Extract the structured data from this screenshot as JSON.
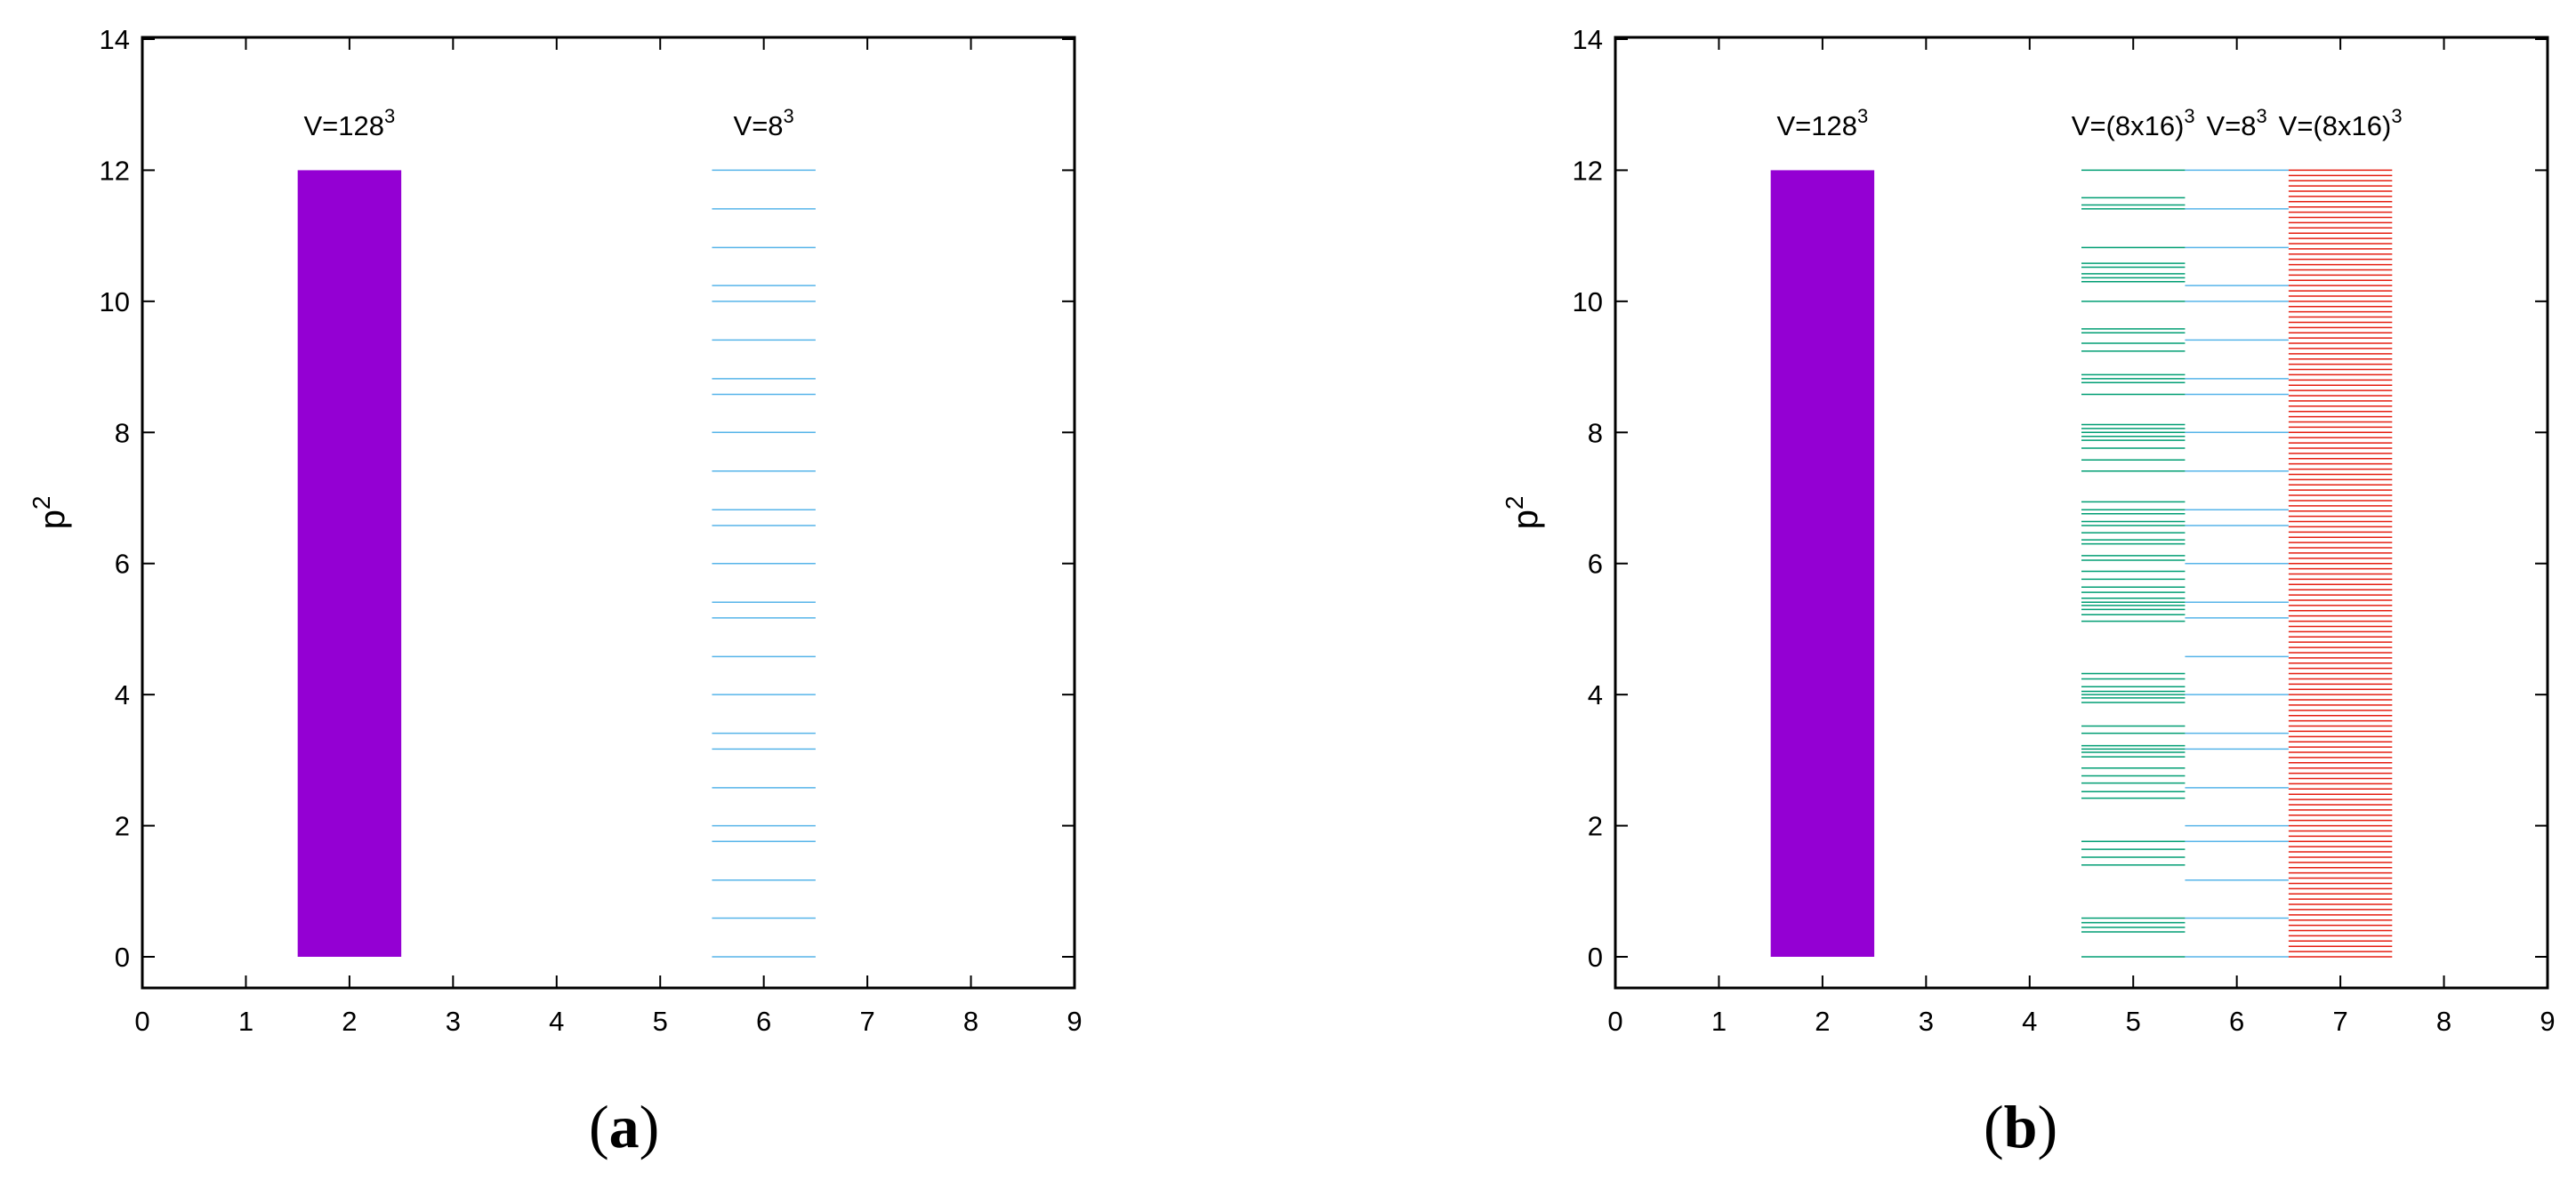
{
  "panels": [
    {
      "label": "(a)",
      "label_bold": "a",
      "chart_data": {
        "type": "bar",
        "title": "",
        "xlabel": "",
        "ylabel": "p",
        "ylabel_superscript": "2",
        "xlim": [
          0,
          9
        ],
        "ylim": [
          0,
          14
        ],
        "x_ticks": [
          "0",
          "1",
          "2",
          "3",
          "4",
          "5",
          "6",
          "7",
          "8",
          "9"
        ],
        "y_ticks": [
          "0",
          "2",
          "4",
          "6",
          "8",
          "10",
          "12",
          "14"
        ],
        "grid": false,
        "annotations": [
          {
            "x": 2.0,
            "y": 12.7,
            "base": "V=128",
            "sup": "3"
          },
          {
            "x": 6.0,
            "y": 12.7,
            "base": "V=8",
            "sup": "3"
          }
        ],
        "series": [
          {
            "kind": "band",
            "x": [
              1.5,
              2.5
            ],
            "y": [
              0,
              12
            ],
            "color": "#9400d3"
          },
          {
            "kind": "levels",
            "x": [
              5.5,
              6.5
            ],
            "color": "#56b4e9",
            "levels": [
              0,
              0.59,
              1.17,
              1.76,
              2.0,
              2.58,
              3.17,
              3.41,
              4.0,
              4.58,
              5.17,
              5.41,
              6.0,
              6.58,
              6.82,
              7.41,
              8.0,
              8.58,
              8.82,
              9.41,
              10.0,
              10.24,
              10.82,
              11.41,
              12.0
            ]
          }
        ]
      }
    },
    {
      "label": "(b)",
      "label_bold": "b",
      "chart_data": {
        "type": "bar",
        "title": "",
        "xlabel": "",
        "ylabel": "p",
        "ylabel_superscript": "2",
        "xlim": [
          0,
          9
        ],
        "ylim": [
          0,
          14
        ],
        "x_ticks": [
          "0",
          "1",
          "2",
          "3",
          "4",
          "5",
          "6",
          "7",
          "8",
          "9"
        ],
        "y_ticks": [
          "0",
          "2",
          "4",
          "6",
          "8",
          "10",
          "12",
          "14"
        ],
        "grid": false,
        "annotations": [
          {
            "x": 2.0,
            "y": 12.7,
            "base": "V=128",
            "sup": "3"
          },
          {
            "x": 5.0,
            "y": 12.7,
            "base": "V=(8x16)",
            "sup": "3"
          },
          {
            "x": 6.0,
            "y": 12.7,
            "base": "V=8",
            "sup": "3"
          },
          {
            "x": 7.0,
            "y": 12.7,
            "base": "V=(8x16)",
            "sup": "3"
          }
        ],
        "series": [
          {
            "kind": "band",
            "x": [
              1.5,
              2.5
            ],
            "y": [
              0,
              12
            ],
            "color": "#9400d3"
          },
          {
            "kind": "levels",
            "x": [
              4.5,
              5.5
            ],
            "color": "#009e73",
            "levels": [
              0,
              0.38,
              0.45,
              0.52,
              0.59,
              1.4,
              1.52,
              1.64,
              1.76,
              2.42,
              2.52,
              2.65,
              2.76,
              2.88,
              3.05,
              3.12,
              3.17,
              3.22,
              3.41,
              3.52,
              3.88,
              3.95,
              4.0,
              4.05,
              4.12,
              4.24,
              4.32,
              5.12,
              5.22,
              5.3,
              5.36,
              5.41,
              5.47,
              5.56,
              5.64,
              5.76,
              5.88,
              6.05,
              6.12,
              6.3,
              6.36,
              6.47,
              6.58,
              6.64,
              6.76,
              6.82,
              6.94,
              7.41,
              7.58,
              7.76,
              7.88,
              7.94,
              8.0,
              8.06,
              8.12,
              8.58,
              8.76,
              8.82,
              8.88,
              9.24,
              9.36,
              9.52,
              9.58,
              10.0,
              10.3,
              10.36,
              10.42,
              10.52,
              10.58,
              10.82,
              11.41,
              11.47,
              11.58,
              12.0
            ]
          },
          {
            "kind": "levels",
            "x": [
              5.5,
              6.5
            ],
            "color": "#56b4e9",
            "levels": [
              0,
              0.59,
              1.17,
              1.76,
              2.0,
              2.58,
              3.17,
              3.41,
              4.0,
              4.58,
              5.17,
              5.41,
              6.0,
              6.58,
              6.82,
              7.41,
              8.0,
              8.58,
              8.82,
              9.41,
              10.0,
              10.24,
              10.82,
              11.41,
              12.0
            ]
          },
          {
            "kind": "levels",
            "x": [
              6.5,
              7.5
            ],
            "color": "#e51e10",
            "density_step": 0.08,
            "range": [
              0,
              12
            ]
          }
        ]
      }
    }
  ]
}
